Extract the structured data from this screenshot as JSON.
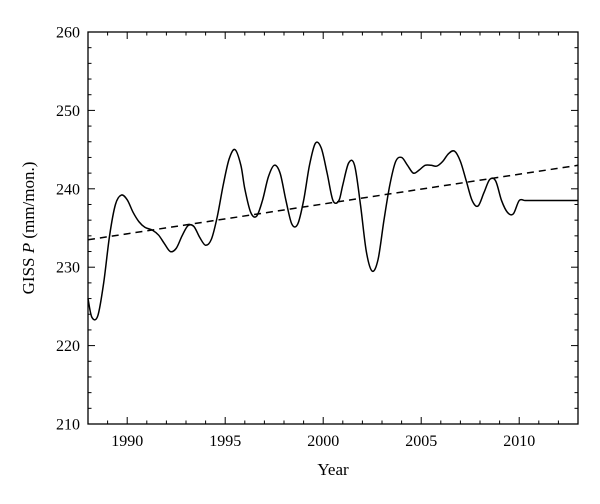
{
  "chart_data": {
    "type": "line",
    "title": "",
    "xlabel": "Year",
    "ylabel_prefix": "GISS ",
    "ylabel_var": "P",
    "ylabel_suffix": " (mm/mon.)",
    "xlim": [
      1988,
      2013
    ],
    "ylim": [
      210,
      260
    ],
    "xticks": [
      1990,
      1995,
      2000,
      2005,
      2010
    ],
    "yticks": [
      210,
      220,
      230,
      240,
      250,
      260
    ],
    "grid": false,
    "legend": "none",
    "series": [
      {
        "style": "solid",
        "x": [
          1988.0,
          1988.2,
          1988.5,
          1988.8,
          1989.1,
          1989.4,
          1989.7,
          1990.0,
          1990.3,
          1990.6,
          1990.9,
          1991.3,
          1991.6,
          1991.9,
          1992.2,
          1992.5,
          1992.8,
          1993.1,
          1993.4,
          1993.7,
          1994.0,
          1994.3,
          1994.6,
          1994.9,
          1995.2,
          1995.5,
          1995.8,
          1996.0,
          1996.3,
          1996.6,
          1996.9,
          1997.2,
          1997.5,
          1997.8,
          1998.1,
          1998.4,
          1998.7,
          1999.0,
          1999.3,
          1999.6,
          1999.9,
          2000.2,
          2000.5,
          2000.8,
          2001.0,
          2001.3,
          2001.6,
          2001.9,
          2002.2,
          2002.5,
          2002.8,
          2003.1,
          2003.4,
          2003.7,
          2004.0,
          2004.3,
          2004.6,
          2004.9,
          2005.2,
          2005.5,
          2005.8,
          2006.1,
          2006.4,
          2006.7,
          2007.0,
          2007.3,
          2007.6,
          2007.9,
          2008.2,
          2008.5,
          2008.8,
          2009.1,
          2009.4,
          2009.7,
          2010.0,
          2010.3,
          2010.6,
          2010.9,
          2011.2,
          2011.5,
          2011.8,
          2012.1,
          2012.4,
          2012.7,
          2013.0
        ],
        "y": [
          226.0,
          223.6,
          223.8,
          228.0,
          234.0,
          238.0,
          239.2,
          238.6,
          237.0,
          235.8,
          235.1,
          234.7,
          234.1,
          233.0,
          232.0,
          232.4,
          234.0,
          235.3,
          235.2,
          233.8,
          232.8,
          233.6,
          236.5,
          240.5,
          243.8,
          245.0,
          243.0,
          240.0,
          237.0,
          236.5,
          238.5,
          241.5,
          243.0,
          242.0,
          238.5,
          235.5,
          235.5,
          238.5,
          243.0,
          245.8,
          245.2,
          242.0,
          238.5,
          238.5,
          240.5,
          243.3,
          243.0,
          238.0,
          232.0,
          229.5,
          231.0,
          236.0,
          240.5,
          243.5,
          244.0,
          243.0,
          242.0,
          242.4,
          243.0,
          243.0,
          242.9,
          243.5,
          244.5,
          244.8,
          243.5,
          241.0,
          238.5,
          237.8,
          239.5,
          241.2,
          241.0,
          238.5,
          237.0,
          236.8,
          238.5,
          238.5,
          238.5,
          238.5,
          238.5,
          238.5,
          238.5,
          238.5,
          238.5,
          238.5,
          238.5
        ]
      },
      {
        "style": "dashed",
        "x": [
          1988.0,
          2013.0
        ],
        "y": [
          233.5,
          243.0
        ]
      }
    ]
  }
}
